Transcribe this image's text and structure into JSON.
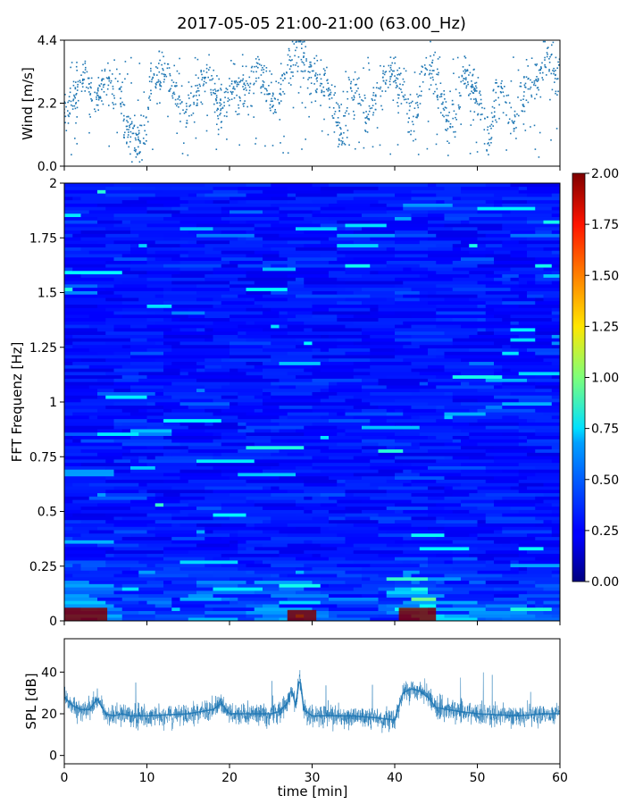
{
  "title": "2017-05-05 21:00-21:00 (63.00_Hz)",
  "colors": {
    "wind_points": "#1f77b4",
    "spl_line": "#1f77b4"
  },
  "chart_data": [
    {
      "type": "scatter",
      "ylabel": "Wind [m/s]",
      "xlim": [
        0,
        60
      ],
      "ylim": [
        0,
        4.4
      ],
      "yticks": [
        "0.0",
        "2.2",
        "4.4"
      ],
      "series": [
        {
          "x": [
            0.5,
            1.5,
            2.5,
            3.5,
            4.5,
            5.5,
            6.5,
            7.5,
            8.5,
            9.5,
            10.5,
            11.5,
            12.5,
            13.5,
            14.5,
            15.5,
            16.5,
            17.5,
            18.5,
            19.5,
            20.5,
            21.5,
            22.5,
            23.5,
            24.5,
            25.5,
            26.5,
            27.5,
            28.5,
            29.5,
            30.5,
            31.5,
            32.5,
            33.5,
            34.5,
            35.5,
            36.5,
            37.5,
            38.5,
            39.5,
            40.5,
            41.5,
            42.5,
            43.5,
            44.5,
            45.5,
            46.5,
            47.5,
            48.5,
            49.5,
            50.5,
            51.5,
            52.5,
            53.5,
            54.5,
            55.5,
            56.5,
            57.5,
            58.5,
            59.5
          ],
          "y": [
            2.0,
            2.7,
            3.3,
            2.2,
            2.8,
            2.9,
            2.8,
            1.5,
            1.0,
            0.8,
            2.9,
            3.1,
            3.5,
            2.5,
            2.0,
            2.2,
            2.8,
            3.2,
            2.3,
            2.0,
            3.0,
            2.5,
            2.8,
            3.4,
            2.8,
            2.2,
            3.0,
            3.5,
            4.2,
            3.4,
            2.8,
            2.9,
            2.0,
            1.2,
            2.5,
            2.8,
            1.5,
            2.2,
            3.0,
            3.3,
            2.8,
            2.0,
            1.5,
            3.3,
            3.6,
            2.6,
            1.5,
            2.0,
            3.4,
            2.7,
            2.0,
            1.0,
            2.8,
            2.2,
            1.5,
            2.5,
            3.0,
            3.2,
            3.8,
            3.3
          ]
        }
      ]
    },
    {
      "type": "heatmap",
      "ylabel": "FFT Frequenz [Hz]",
      "xlim": [
        0,
        60
      ],
      "ylim": [
        0,
        2
      ],
      "yticks": [
        "0",
        "0.25",
        "0.5",
        "0.75",
        "1",
        "1.25",
        "1.5",
        "1.75",
        "2"
      ],
      "colormap": "jet",
      "colorbar": {
        "range": [
          0,
          2
        ],
        "ticks": [
          "0.00",
          "0.25",
          "0.50",
          "0.75",
          "1.00",
          "1.25",
          "1.50",
          "1.75",
          "2.00"
        ]
      },
      "low_frequency_peaks": [
        {
          "time_min": [
            0,
            5.2
          ],
          "freq_hz": [
            0,
            0.06
          ],
          "value": 2.0
        },
        {
          "time_min": [
            27,
            30.5
          ],
          "freq_hz": [
            0,
            0.05
          ],
          "value": 2.0
        },
        {
          "time_min": [
            40.5,
            45
          ],
          "freq_hz": [
            0,
            0.06
          ],
          "value": 2.0
        }
      ]
    },
    {
      "type": "line",
      "ylabel": "SPL [dB]",
      "xlabel": "time [min]",
      "xlim": [
        0,
        60
      ],
      "ylim": [
        -4,
        56
      ],
      "yticks": [
        "0",
        "20",
        "40"
      ],
      "xticks": [
        "0",
        "10",
        "20",
        "30",
        "40",
        "50",
        "60"
      ],
      "series": [
        {
          "x": [
            0,
            1,
            2,
            3,
            4,
            5,
            6,
            7,
            8,
            10,
            15,
            18,
            19,
            20,
            22,
            25,
            26,
            27,
            27.5,
            28,
            28.5,
            29,
            30,
            35,
            38,
            40,
            41,
            42,
            43,
            44,
            45,
            48,
            50,
            55,
            58,
            60
          ],
          "y": [
            28,
            24,
            22,
            22,
            27,
            20,
            19,
            20,
            19,
            19,
            20,
            22,
            25,
            20,
            20,
            20,
            21,
            25,
            32,
            24,
            38,
            22,
            19,
            19,
            18,
            17,
            30,
            32,
            31,
            28,
            23,
            21,
            20,
            19,
            20,
            20
          ]
        }
      ]
    }
  ]
}
